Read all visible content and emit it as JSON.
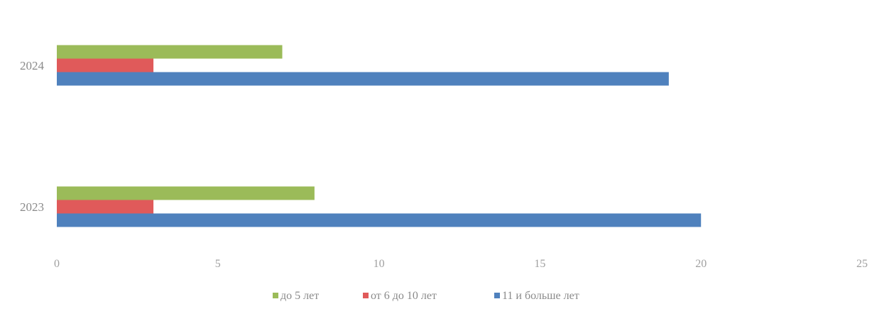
{
  "chart_data": {
    "type": "bar",
    "orientation": "horizontal",
    "categories": [
      "2024",
      "2023"
    ],
    "series": [
      {
        "name": "до 5 лет",
        "color": "#9bbb59",
        "values": [
          7,
          8
        ]
      },
      {
        "name": "от 6 до 10 лет",
        "color": "#e05a5a",
        "values": [
          3,
          3
        ]
      },
      {
        "name": "11 и больше лет",
        "color": "#4f81bd",
        "values": [
          19,
          20
        ]
      }
    ],
    "xlim": [
      0,
      25
    ],
    "xticks": [
      0,
      5,
      10,
      15,
      20,
      25
    ],
    "title": "",
    "xlabel": "",
    "ylabel": "",
    "grid": false,
    "legend_position": "bottom"
  }
}
